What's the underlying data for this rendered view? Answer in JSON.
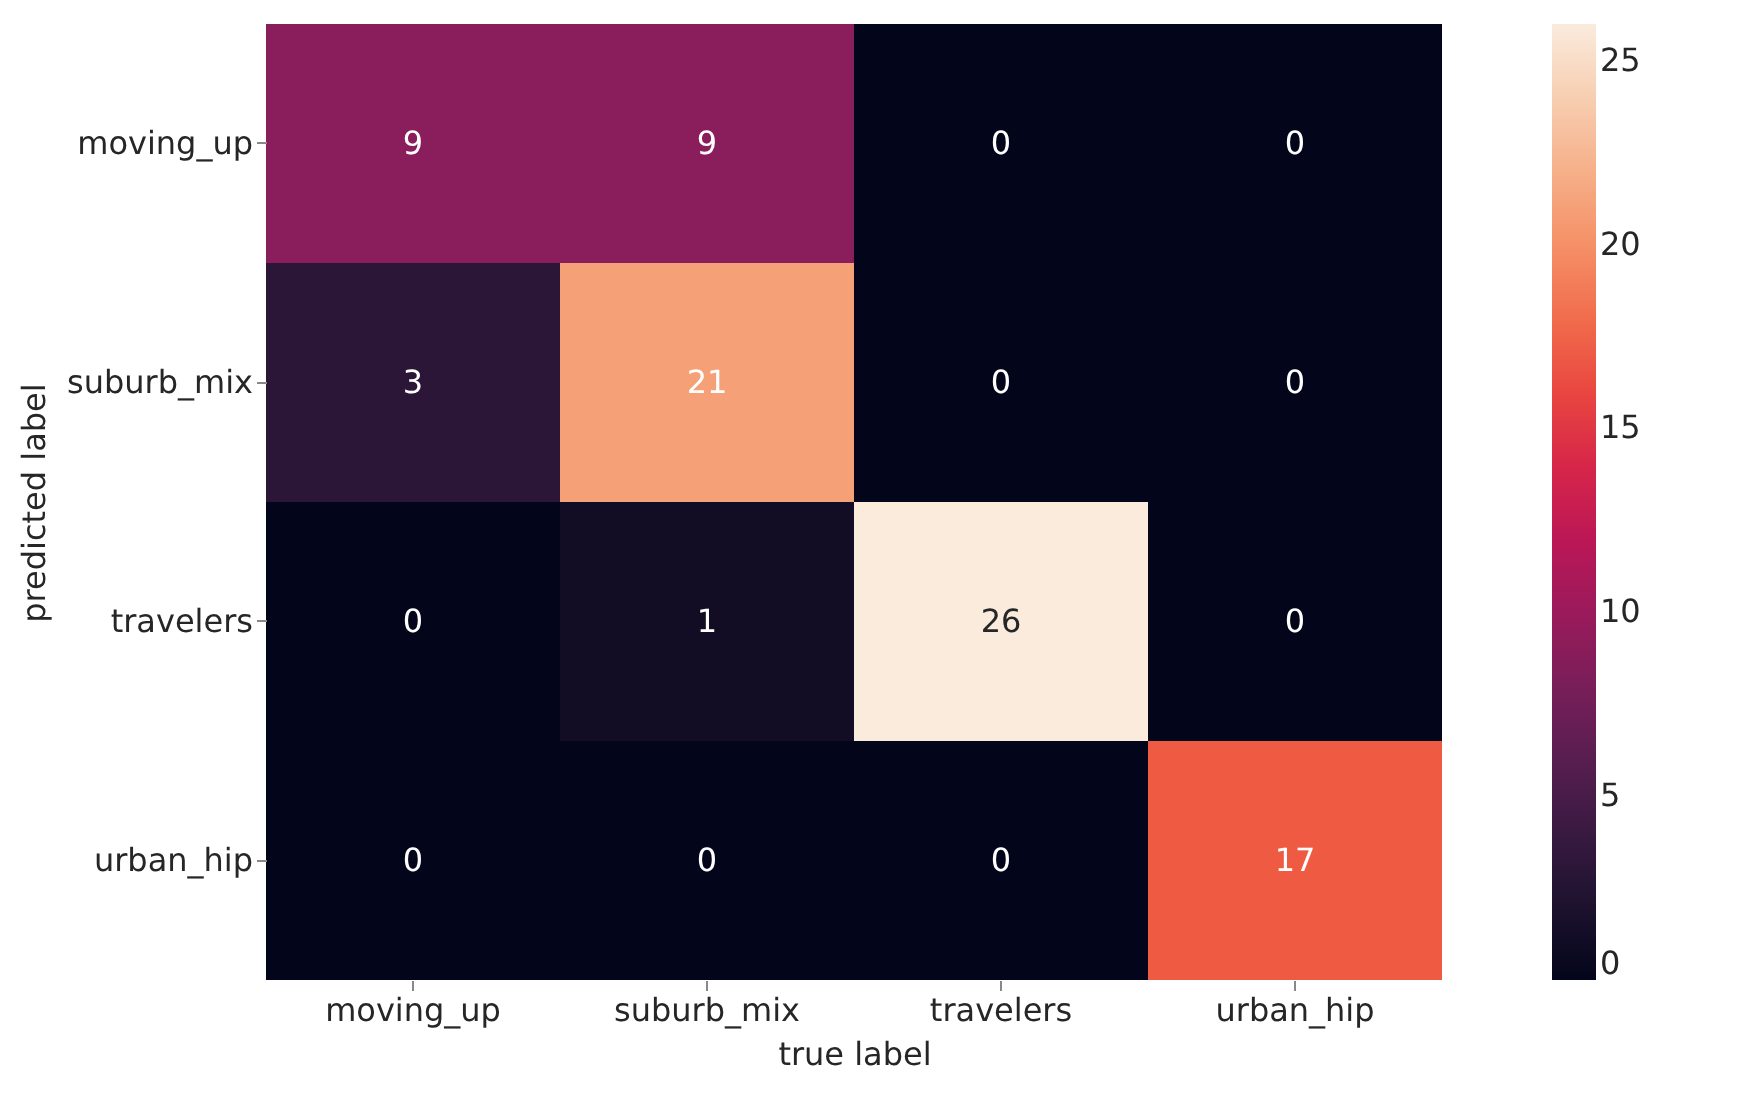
{
  "chart_data": {
    "type": "heatmap",
    "xlabel": "true label",
    "ylabel": "predicted label",
    "categories": [
      "moving_up",
      "suburb_mix",
      "travelers",
      "urban_hip"
    ],
    "y_categories": [
      "moving_up",
      "suburb_mix",
      "travelers",
      "urban_hip"
    ],
    "cells": [
      [
        9,
        9,
        0,
        0
      ],
      [
        3,
        21,
        0,
        0
      ],
      [
        0,
        1,
        26,
        0
      ],
      [
        0,
        0,
        0,
        17
      ]
    ],
    "data_labels": true,
    "clim": [
      0,
      26
    ],
    "cticks": [
      0,
      5,
      10,
      15,
      20,
      25
    ]
  }
}
